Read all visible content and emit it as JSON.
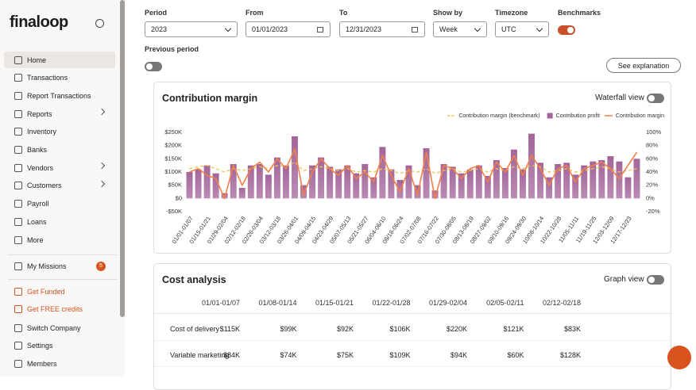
{
  "sidebar": {
    "logo": "finaloop",
    "items": [
      "Home",
      "Transactions",
      "Report Transactions",
      "Reports",
      "Inventory",
      "Banks",
      "Vendors",
      "Customers",
      "Payroll",
      "Loans",
      "More"
    ],
    "missions": {
      "label": "My Missions",
      "badge": 5
    },
    "promos": [
      "Get Funded",
      "Get FREE credits"
    ],
    "footer": [
      "Switch Company",
      "Settings",
      "Members"
    ]
  },
  "filters": {
    "period": {
      "label": "Period",
      "value": "2023"
    },
    "from": {
      "label": "From",
      "value": "01/01/2023"
    },
    "to": {
      "label": "To",
      "value": "12/31/2023"
    },
    "show_by": {
      "label": "Show by",
      "value": "Week"
    },
    "timezone": {
      "label": "Timezone",
      "value": "UTC"
    },
    "benchmarks": {
      "label": "Benchmarks",
      "on": true
    },
    "previous_period": {
      "label": "Previous period",
      "on": false
    },
    "explanation": "See explanation"
  },
  "chart_data": {
    "type": "bar",
    "title": "Contribution margin",
    "toggle": {
      "label": "Waterfall view",
      "on": false
    },
    "categories": [
      "01/01-01/07",
      null,
      "01/15-01/21",
      null,
      "01/29-02/04",
      null,
      "02/12-02/18",
      null,
      "02/26-03/04",
      null,
      "03/12-03/18",
      null,
      "03/26-04/01",
      null,
      "04/09-04/15",
      null,
      "04/23-04/29",
      null,
      "05/07-05/13",
      null,
      "05/21-05/27",
      null,
      "06/04-06/10",
      null,
      "06/18-06/24",
      null,
      "07/02-07/08",
      null,
      "07/16-07/22",
      null,
      "07/30-08/05",
      null,
      "08/13-08/19",
      null,
      "08/27-09/02",
      null,
      "09/10-09/16",
      null,
      "09/24-09/30",
      null,
      "10/08-10/14",
      null,
      "10/22-10/28",
      null,
      "11/05-11/11",
      null,
      "11/19-11/25",
      null,
      "12/03-12/09",
      null,
      "12/17-12/23",
      null
    ],
    "series": [
      {
        "name": "Contribution margin (benchmark)",
        "type": "line",
        "dashed": true,
        "axis": "y2",
        "color": "#f2c14e",
        "values": [
          45,
          48,
          50,
          45,
          40,
          45,
          42,
          45,
          48,
          45,
          50,
          48,
          55,
          42,
          45,
          48,
          45,
          42,
          45,
          40,
          42,
          40,
          45,
          42,
          38,
          42,
          40,
          45,
          38,
          42,
          45,
          40,
          42,
          45,
          40,
          45,
          42,
          48,
          45,
          50,
          48,
          40,
          42,
          45,
          40,
          42,
          45,
          48,
          45,
          40,
          42,
          45
        ]
      },
      {
        "name": "Contribution profit",
        "type": "bar",
        "color": "#a3659a",
        "values": [
          100000,
          110000,
          125000,
          95000,
          20000,
          130000,
          40000,
          125000,
          130000,
          90000,
          155000,
          125000,
          235000,
          50000,
          125000,
          155000,
          120000,
          110000,
          125000,
          95000,
          130000,
          80000,
          195000,
          110000,
          70000,
          125000,
          50000,
          190000,
          30000,
          130000,
          120000,
          95000,
          110000,
          125000,
          85000,
          145000,
          115000,
          185000,
          110000,
          245000,
          135000,
          80000,
          130000,
          135000,
          90000,
          125000,
          140000,
          145000,
          160000,
          140000,
          80000,
          150000
        ]
      },
      {
        "name": "Contribution margin",
        "type": "line",
        "axis": "y2",
        "color": "#f0804a",
        "values": [
          40,
          45,
          35,
          30,
          0,
          50,
          20,
          45,
          55,
          40,
          60,
          45,
          75,
          5,
          40,
          60,
          45,
          35,
          50,
          30,
          40,
          25,
          65,
          35,
          10,
          45,
          5,
          70,
          0,
          50,
          45,
          30,
          45,
          50,
          25,
          55,
          40,
          65,
          35,
          65,
          45,
          20,
          45,
          50,
          25,
          45,
          50,
          55,
          45,
          30,
          50,
          70
        ]
      }
    ],
    "ylim": [
      -50000,
      250000
    ],
    "yticks": [
      {
        "value": -50000,
        "label": "-$50K"
      },
      {
        "value": 0,
        "label": "$0"
      },
      {
        "value": 50000,
        "label": "$50K"
      },
      {
        "value": 100000,
        "label": "$100K"
      },
      {
        "value": 150000,
        "label": "$150K"
      },
      {
        "value": 200000,
        "label": "$200K"
      },
      {
        "value": 250000,
        "label": "$250K"
      }
    ],
    "y2lim": [
      -20,
      100
    ],
    "y2ticks": [
      {
        "value": -20,
        "label": "-20%"
      },
      {
        "value": 0,
        "label": "0%"
      },
      {
        "value": 20,
        "label": "20%"
      },
      {
        "value": 40,
        "label": "40%"
      },
      {
        "value": 60,
        "label": "60%"
      },
      {
        "value": 80,
        "label": "80%"
      },
      {
        "value": 100,
        "label": "100%"
      }
    ],
    "legend": "top-right"
  },
  "cost_analysis": {
    "title": "Cost analysis",
    "toggle": {
      "label": "Graph view",
      "on": false
    },
    "columns": [
      "01/01-01/07",
      "01/08-01/14",
      "01/15-01/21",
      "01/22-01/28",
      "01/29-02/04",
      "02/05-02/11",
      "02/12-02/18"
    ],
    "rows": [
      {
        "label": "Cost of delivery",
        "cells": [
          "$115K",
          "$99K",
          "$92K",
          "$106K",
          "$220K",
          "$121K",
          "$83K"
        ]
      },
      {
        "label": "Variable marketing",
        "cells": [
          "$84K",
          "$74K",
          "$75K",
          "$109K",
          "$94K",
          "$60K",
          "$128K"
        ]
      }
    ]
  }
}
